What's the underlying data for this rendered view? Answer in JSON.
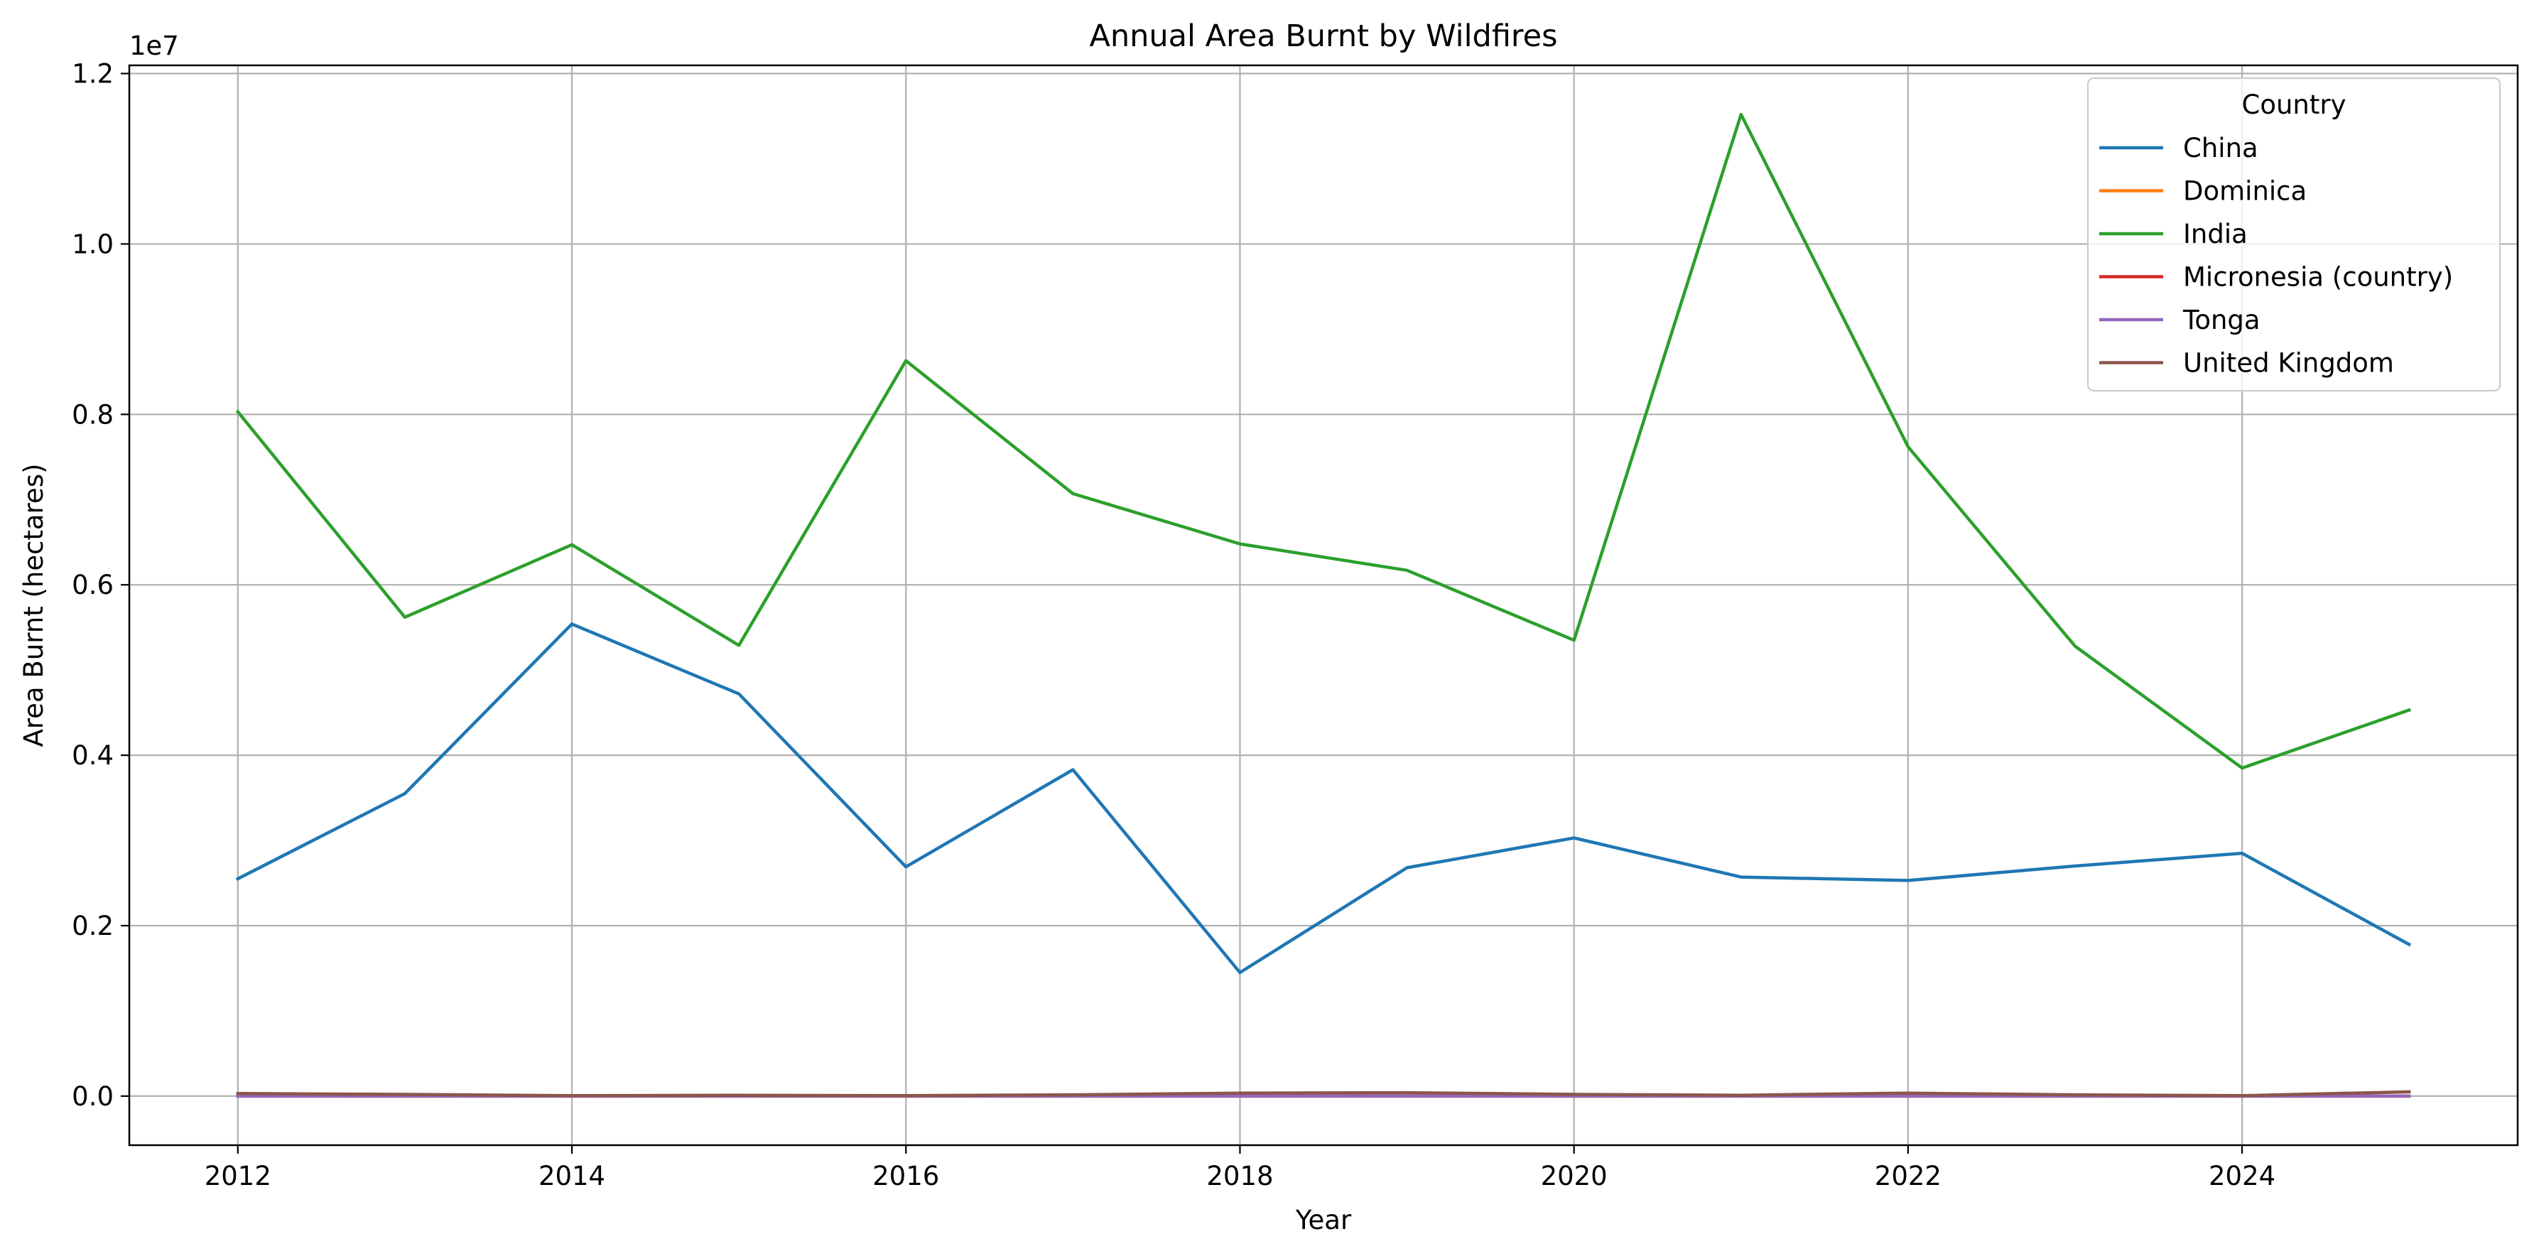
{
  "chart_data": {
    "type": "line",
    "title": "Annual Area Burnt by Wildfires",
    "xlabel": "Year",
    "ylabel": "Area Burnt (hectares)",
    "y_offset_label": "1e7",
    "x": [
      2012,
      2013,
      2014,
      2015,
      2016,
      2017,
      2018,
      2019,
      2020,
      2021,
      2022,
      2023,
      2024,
      2025
    ],
    "xticks": [
      2012,
      2014,
      2016,
      2018,
      2020,
      2022,
      2024
    ],
    "xtick_labels": [
      "2012",
      "2014",
      "2016",
      "2018",
      "2020",
      "2022",
      "2024"
    ],
    "xlim": [
      2011.35,
      2025.65
    ],
    "yticks": [
      0,
      2000000,
      4000000,
      6000000,
      8000000,
      10000000,
      12000000
    ],
    "ytick_labels": [
      "0.0",
      "0.2",
      "0.4",
      "0.6",
      "0.8",
      "1.0",
      "1.2"
    ],
    "ylim": [
      -576000,
      12096000
    ],
    "grid": true,
    "legend": {
      "title": "Country",
      "placement": "upper-right"
    },
    "series": [
      {
        "name": "China",
        "color": "#1f77b4",
        "values": [
          2550000,
          3550000,
          5540000,
          4720000,
          2690000,
          3830000,
          1450000,
          2680000,
          3030000,
          2570000,
          2530000,
          2700000,
          2850000,
          1780000
        ]
      },
      {
        "name": "Dominica",
        "color": "#ff7f0e",
        "values": [
          0,
          0,
          0,
          0,
          0,
          0,
          0,
          0,
          0,
          0,
          0,
          0,
          0,
          0
        ]
      },
      {
        "name": "India",
        "color": "#2ca02c",
        "values": [
          8030000,
          5620000,
          6470000,
          5290000,
          8630000,
          7070000,
          6480000,
          6170000,
          5350000,
          11520000,
          7620000,
          5280000,
          3850000,
          4530000
        ]
      },
      {
        "name": "Micronesia (country)",
        "color": "#d62728",
        "values": [
          0,
          0,
          0,
          0,
          0,
          0,
          0,
          0,
          0,
          0,
          0,
          0,
          0,
          0
        ]
      },
      {
        "name": "Tonga",
        "color": "#9467bd",
        "values": [
          0,
          0,
          0,
          0,
          0,
          0,
          0,
          0,
          0,
          0,
          0,
          0,
          0,
          0
        ]
      },
      {
        "name": "United Kingdom",
        "color": "#8c564b",
        "values": [
          30000,
          20000,
          5000,
          10000,
          5000,
          15000,
          35000,
          40000,
          20000,
          10000,
          35000,
          15000,
          5000,
          50000
        ]
      }
    ]
  }
}
